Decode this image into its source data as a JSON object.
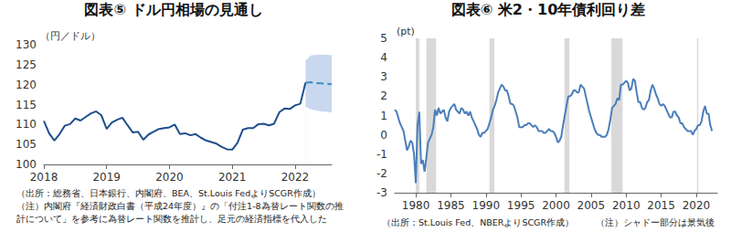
{
  "chart_data": [
    {
      "type": "line",
      "title": "図表⑤ ドル円相場の見通し",
      "y_label": "（円／ドル）",
      "categories": [
        "2018",
        null,
        null,
        null,
        null,
        null,
        null,
        null,
        null,
        null,
        null,
        null,
        "2019",
        null,
        null,
        null,
        null,
        null,
        null,
        null,
        null,
        null,
        null,
        null,
        "2020",
        null,
        null,
        null,
        null,
        null,
        null,
        null,
        null,
        null,
        null,
        null,
        "2021",
        null,
        null,
        null,
        null,
        null,
        null,
        null,
        null,
        null,
        null,
        null,
        "2022",
        null,
        null,
        null,
        null,
        null,
        null,
        null
      ],
      "series": [
        {
          "color": "#1f4e8c",
          "line_style": "solid",
          "values": [
            110.9,
            107.8,
            106.0,
            107.6,
            109.7,
            110.1,
            111.5,
            111.0,
            111.9,
            112.8,
            113.3,
            112.3,
            108.9,
            110.5,
            111.2,
            111.7,
            109.8,
            108.0,
            108.2,
            106.2,
            107.5,
            108.2,
            108.9,
            109.1,
            109.3,
            110.0,
            107.6,
            107.8,
            107.3,
            107.6,
            106.7,
            106.0,
            105.6,
            105.2,
            104.4,
            103.8,
            103.7,
            105.4,
            108.7,
            109.1,
            109.1,
            110.1,
            110.2,
            109.8,
            110.2,
            113.1,
            114.0,
            113.9,
            114.8,
            115.2,
            120.5,
            null,
            null,
            null,
            null,
            null
          ]
        },
        {
          "color": "#3a8fc4",
          "line_style": "dashed",
          "values": [
            null,
            null,
            null,
            null,
            null,
            null,
            null,
            null,
            null,
            null,
            null,
            null,
            null,
            null,
            null,
            null,
            null,
            null,
            null,
            null,
            null,
            null,
            null,
            null,
            null,
            null,
            null,
            null,
            null,
            null,
            null,
            null,
            null,
            null,
            null,
            null,
            null,
            null,
            null,
            null,
            null,
            null,
            null,
            null,
            null,
            null,
            null,
            null,
            null,
            null,
            120.5,
            120.6,
            120.4,
            120.3,
            120.2,
            120.1
          ]
        }
      ],
      "band": {
        "color": "#c9d8ef",
        "upper": [
          null,
          null,
          null,
          null,
          null,
          null,
          null,
          null,
          null,
          null,
          null,
          null,
          null,
          null,
          null,
          null,
          null,
          null,
          null,
          null,
          null,
          null,
          null,
          null,
          null,
          null,
          null,
          null,
          null,
          null,
          null,
          null,
          null,
          null,
          null,
          null,
          null,
          null,
          null,
          null,
          null,
          null,
          null,
          null,
          null,
          null,
          null,
          null,
          null,
          null,
          126.0,
          127.3,
          127.5,
          127.5,
          127.5,
          127.4
        ],
        "lower": [
          null,
          null,
          null,
          null,
          null,
          null,
          null,
          null,
          null,
          null,
          null,
          null,
          null,
          null,
          null,
          null,
          null,
          null,
          null,
          null,
          null,
          null,
          null,
          null,
          null,
          null,
          null,
          null,
          null,
          null,
          null,
          null,
          null,
          null,
          null,
          null,
          null,
          null,
          null,
          null,
          null,
          null,
          null,
          null,
          null,
          null,
          null,
          null,
          null,
          null,
          114.5,
          113.8,
          113.5,
          113.3,
          113.2,
          113.0
        ]
      },
      "ylim": [
        100,
        130
      ],
      "yticks": [
        100,
        105,
        110,
        115,
        120,
        125,
        130
      ],
      "grid": false,
      "notes": [
        "（出所：総務省、日本銀行、内閣府、BEA、St.Louis FedよりSCGR作成）",
        "（注）内閣府『経済財政白書（平成24年度）』の「付注1-8為替レート関数の推",
        "計について」を参考に為替レート関数を推計し、足元の経済指標を代入した"
      ]
    },
    {
      "type": "line",
      "title": "図表⑥ 米2・10年債利回り差",
      "y_label": "(pt)",
      "color": "#4a7ebb",
      "x": [
        1977,
        1977.25,
        1977.5,
        1977.75,
        1978,
        1978.25,
        1978.5,
        1978.75,
        1979,
        1979.25,
        1979.5,
        1979.75,
        1980,
        1980.25,
        1980.5,
        1980.75,
        1981,
        1981.25,
        1981.5,
        1981.75,
        1982,
        1982.25,
        1982.5,
        1982.75,
        1983,
        1983.25,
        1983.5,
        1983.75,
        1984,
        1984.25,
        1984.5,
        1984.75,
        1985,
        1985.25,
        1985.5,
        1985.75,
        1986,
        1986.25,
        1986.5,
        1986.75,
        1987,
        1987.25,
        1987.5,
        1987.75,
        1988,
        1988.25,
        1988.5,
        1988.75,
        1989,
        1989.25,
        1989.5,
        1989.75,
        1990,
        1990.25,
        1990.5,
        1990.75,
        1991,
        1991.25,
        1991.5,
        1991.75,
        1992,
        1992.25,
        1992.5,
        1992.75,
        1993,
        1993.25,
        1993.5,
        1993.75,
        1994,
        1994.25,
        1994.5,
        1994.75,
        1995,
        1995.25,
        1995.5,
        1995.75,
        1996,
        1996.25,
        1996.5,
        1996.75,
        1997,
        1997.25,
        1997.5,
        1997.75,
        1998,
        1998.25,
        1998.5,
        1998.75,
        1999,
        1999.25,
        1999.5,
        1999.75,
        2000,
        2000.25,
        2000.5,
        2000.75,
        2001,
        2001.25,
        2001.5,
        2001.75,
        2002,
        2002.25,
        2002.5,
        2002.75,
        2003,
        2003.25,
        2003.5,
        2003.75,
        2004,
        2004.25,
        2004.5,
        2004.75,
        2005,
        2005.25,
        2005.5,
        2005.75,
        2006,
        2006.25,
        2006.5,
        2006.75,
        2007,
        2007.25,
        2007.5,
        2007.75,
        2008,
        2008.25,
        2008.5,
        2008.75,
        2009,
        2009.25,
        2009.5,
        2009.75,
        2010,
        2010.25,
        2010.5,
        2010.75,
        2011,
        2011.25,
        2011.5,
        2011.75,
        2012,
        2012.25,
        2012.5,
        2012.75,
        2013,
        2013.25,
        2013.5,
        2013.75,
        2014,
        2014.25,
        2014.5,
        2014.75,
        2015,
        2015.25,
        2015.5,
        2015.75,
        2016,
        2016.25,
        2016.5,
        2016.75,
        2017,
        2017.25,
        2017.5,
        2017.75,
        2018,
        2018.25,
        2018.5,
        2018.75,
        2019,
        2019.25,
        2019.5,
        2019.75,
        2020,
        2020.25,
        2020.5,
        2020.75,
        2021,
        2021.25,
        2021.5,
        2021.75,
        2022,
        2022.25
      ],
      "values": [
        1.3,
        1.2,
        0.9,
        0.6,
        0.4,
        0.2,
        -0.3,
        -0.8,
        -0.6,
        -0.3,
        -0.4,
        -1.0,
        -2.5,
        0.5,
        1.2,
        -1.5,
        -1.3,
        -1.9,
        -1.2,
        -0.4,
        -0.2,
        0.0,
        0.4,
        1.3,
        1.0,
        1.4,
        1.1,
        1.2,
        1.3,
        0.9,
        0.7,
        1.2,
        1.4,
        1.5,
        1.6,
        1.3,
        1.2,
        1.1,
        1.4,
        1.3,
        1.1,
        1.2,
        1.0,
        1.2,
        0.9,
        0.7,
        0.5,
        0.3,
        0.0,
        -0.1,
        0.1,
        0.1,
        0.2,
        0.3,
        0.6,
        0.9,
        1.3,
        1.5,
        1.8,
        2.2,
        2.4,
        2.6,
        2.5,
        2.3,
        2.3,
        2.0,
        1.6,
        1.6,
        1.5,
        1.2,
        0.9,
        0.4,
        0.4,
        0.4,
        0.5,
        0.5,
        0.6,
        0.6,
        0.5,
        0.4,
        0.5,
        0.4,
        0.2,
        0.2,
        0.2,
        0.1,
        0.1,
        0.2,
        0.3,
        0.2,
        0.2,
        0.1,
        -0.1,
        -0.4,
        -0.3,
        -0.1,
        0.5,
        1.0,
        1.5,
        2.0,
        2.0,
        2.1,
        2.3,
        2.3,
        2.2,
        2.2,
        2.6,
        2.5,
        2.4,
        2.0,
        1.6,
        1.2,
        0.9,
        0.6,
        0.3,
        0.1,
        0.0,
        0.0,
        -0.1,
        -0.1,
        -0.1,
        0.0,
        0.3,
        0.8,
        1.4,
        1.5,
        1.6,
        1.9,
        1.8,
        2.6,
        2.6,
        2.7,
        2.8,
        2.7,
        2.3,
        2.4,
        2.9,
        2.8,
        2.2,
        1.7,
        1.7,
        1.4,
        1.3,
        1.4,
        1.7,
        1.8,
        2.3,
        2.6,
        2.4,
        2.1,
        1.9,
        1.6,
        1.5,
        1.6,
        1.5,
        1.3,
        1.1,
        0.9,
        0.9,
        1.2,
        1.2,
        1.0,
        0.9,
        0.6,
        0.6,
        0.4,
        0.3,
        0.2,
        0.2,
        0.2,
        0.0,
        0.2,
        0.3,
        0.5,
        0.5,
        0.7,
        1.2,
        1.5,
        1.1,
        1.1,
        0.5,
        0.2
      ],
      "recessions": [
        [
          1980.0,
          1980.5
        ],
        [
          1981.5,
          1982.9
        ],
        [
          1990.5,
          1991.2
        ],
        [
          2001.2,
          2001.9
        ],
        [
          2007.9,
          2009.5
        ],
        [
          2020.1,
          2020.3
        ]
      ],
      "recession_color": "#d9d9d9",
      "xlim": [
        1977,
        2023
      ],
      "xticks": [
        1980,
        1985,
        1990,
        1995,
        2000,
        2005,
        2010,
        2015,
        2020
      ],
      "ylim": [
        -3,
        5
      ],
      "yticks": [
        -3,
        -2,
        -1,
        0,
        1,
        2,
        3,
        4,
        5
      ],
      "grid": false,
      "notes": [
        "（出所：St.Louis Fed、NBERよりSCGR作成）",
        "（注）シャドー部分は景気後"
      ]
    }
  ]
}
